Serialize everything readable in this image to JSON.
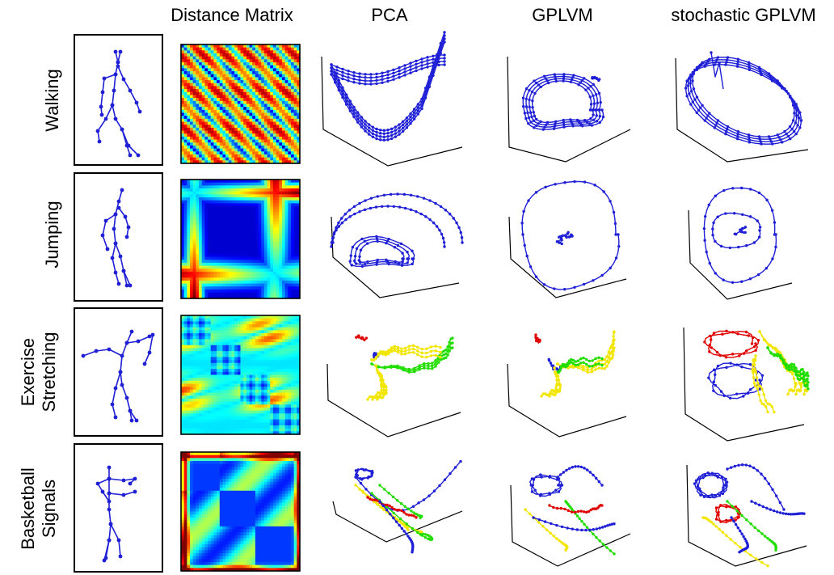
{
  "columns": {
    "distance_matrix": "Distance Matrix",
    "pca": "PCA",
    "gplvm": "GPLVM",
    "stochastic_gplvm": "stochastic GPLVM"
  },
  "rows": [
    {
      "id": "walking",
      "label": [
        "Walking"
      ],
      "matrix": "periodic-stripes",
      "trajectory_colors": [
        "#1f1fd6"
      ]
    },
    {
      "id": "jumping",
      "label": [
        "Jumping"
      ],
      "matrix": "block",
      "trajectory_colors": [
        "#1f1fd6"
      ]
    },
    {
      "id": "exercise-stretching",
      "label": [
        "Exercise",
        "Stretching"
      ],
      "matrix": "multi-block",
      "trajectory_colors": [
        "#e00000",
        "#1f1fd6",
        "#f2e600",
        "#22dd00"
      ]
    },
    {
      "id": "basketball-signals",
      "label": [
        "Basketball",
        "Signals"
      ],
      "matrix": "block-diagonal",
      "trajectory_colors": [
        "#1f1fd6",
        "#e00000",
        "#f2e600",
        "#22dd00"
      ]
    }
  ],
  "colors": {
    "skeleton": "#1f1fd6",
    "blue": "#1f1fd6",
    "red": "#e00000",
    "yellow": "#f2e600",
    "green": "#22dd00",
    "jet_low": "#00008f",
    "jet_high": "#800000"
  }
}
